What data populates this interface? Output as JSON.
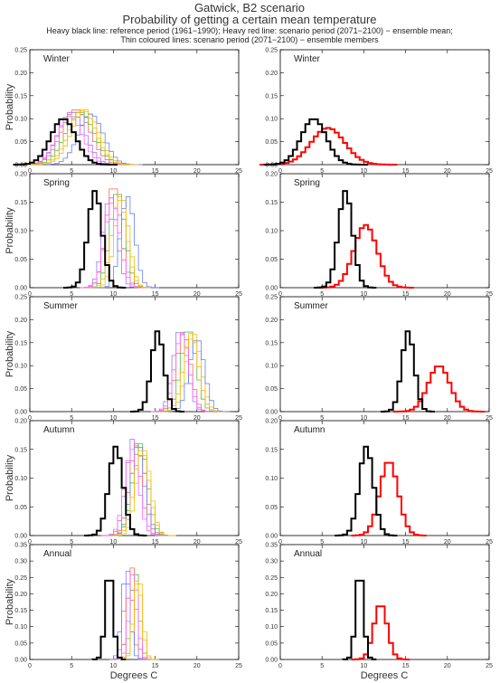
{
  "header": {
    "title1": "Gatwick, B2 scenario",
    "title2": "Probability of getting a certain mean temperature",
    "subtitle1": "Heavy black line: reference period (1961−1990); Heavy red line: scenario period (2071−2100) − ensemble mean;",
    "subtitle2": "Thin coloured lines: scenario period (2071−2100) − ensemble members"
  },
  "axes": {
    "ylabel": "Probability",
    "xlabel": "Degrees C",
    "xticks": [
      "0",
      "5",
      "10",
      "15",
      "20",
      "25"
    ],
    "xlim": [
      0,
      25
    ]
  },
  "colors": {
    "reference": "#000000",
    "ensemble_mean": "#ff0000",
    "members": [
      "#a070ff",
      "#ff6060",
      "#40c040",
      "#f0c000",
      "#6080ff",
      "#ff60ff",
      "#ffb000",
      "#000000"
    ]
  },
  "chart_data": [
    {
      "type": "line",
      "season": "Winter",
      "panel": "members",
      "ylim": [
        0,
        0.25
      ],
      "yticks": [
        "0.00",
        "0.05",
        "0.10",
        "0.15",
        "0.20",
        "0.25"
      ],
      "reference": {
        "mean": 4.0,
        "sd": 1.5,
        "peak": 0.1
      },
      "members": [
        {
          "mean": 5.0,
          "sd": 1.6,
          "peak": 0.115
        },
        {
          "mean": 5.5,
          "sd": 1.7,
          "peak": 0.12
        },
        {
          "mean": 6.0,
          "sd": 1.7,
          "peak": 0.115
        },
        {
          "mean": 6.6,
          "sd": 1.6,
          "peak": 0.12
        },
        {
          "mean": 7.3,
          "sd": 1.5,
          "peak": 0.11
        },
        {
          "mean": 4.8,
          "sd": 1.5,
          "peak": 0.105
        },
        {
          "mean": 6.3,
          "sd": 1.6,
          "peak": 0.12
        }
      ]
    },
    {
      "type": "line",
      "season": "Winter",
      "panel": "mean",
      "ylim": [
        0,
        0.25
      ],
      "yticks": [
        "0.00",
        "0.05",
        "0.10",
        "0.15",
        "0.20",
        "0.25"
      ],
      "reference": {
        "mean": 4.0,
        "sd": 1.5,
        "peak": 0.1
      },
      "ensemble_mean": {
        "mean": 5.7,
        "sd": 2.0,
        "peak": 0.08
      }
    },
    {
      "type": "line",
      "season": "Spring",
      "panel": "members",
      "ylim": [
        0,
        0.2
      ],
      "yticks": [
        "0.00",
        "0.05",
        "0.10",
        "0.15",
        "0.20"
      ],
      "reference": {
        "mean": 7.8,
        "sd": 0.85,
        "peak": 0.17
      },
      "members": [
        {
          "mean": 9.6,
          "sd": 0.85,
          "peak": 0.16
        },
        {
          "mean": 10.0,
          "sd": 0.9,
          "peak": 0.18
        },
        {
          "mean": 10.5,
          "sd": 0.9,
          "peak": 0.17
        },
        {
          "mean": 11.0,
          "sd": 0.85,
          "peak": 0.16
        },
        {
          "mean": 11.7,
          "sd": 0.85,
          "peak": 0.16
        },
        {
          "mean": 9.9,
          "sd": 0.9,
          "peak": 0.15
        },
        {
          "mean": 10.7,
          "sd": 0.9,
          "peak": 0.16
        }
      ]
    },
    {
      "type": "line",
      "season": "Spring",
      "panel": "mean",
      "ylim": [
        0,
        0.2
      ],
      "yticks": [
        "0.00",
        "0.05",
        "0.10",
        "0.15",
        "0.20"
      ],
      "reference": {
        "mean": 7.8,
        "sd": 0.85,
        "peak": 0.17
      },
      "ensemble_mean": {
        "mean": 10.2,
        "sd": 1.4,
        "peak": 0.11
      }
    },
    {
      "type": "line",
      "season": "Summer",
      "panel": "members",
      "ylim": [
        0,
        0.25
      ],
      "yticks": [
        "0.00",
        "0.05",
        "0.10",
        "0.15",
        "0.20",
        "0.25"
      ],
      "reference": {
        "mean": 15.3,
        "sd": 0.75,
        "peak": 0.175
      },
      "members": [
        {
          "mean": 18.0,
          "sd": 0.85,
          "peak": 0.18
        },
        {
          "mean": 18.4,
          "sd": 0.85,
          "peak": 0.17
        },
        {
          "mean": 19.0,
          "sd": 0.9,
          "peak": 0.18
        },
        {
          "mean": 19.6,
          "sd": 0.9,
          "peak": 0.17
        },
        {
          "mean": 20.0,
          "sd": 0.9,
          "peak": 0.16
        },
        {
          "mean": 18.2,
          "sd": 0.85,
          "peak": 0.17
        },
        {
          "mean": 19.3,
          "sd": 0.9,
          "peak": 0.17
        }
      ]
    },
    {
      "type": "line",
      "season": "Summer",
      "panel": "mean",
      "ylim": [
        0,
        0.25
      ],
      "yticks": [
        "0.00",
        "0.05",
        "0.10",
        "0.15",
        "0.20",
        "0.25"
      ],
      "reference": {
        "mean": 15.3,
        "sd": 0.75,
        "peak": 0.175
      },
      "ensemble_mean": {
        "mean": 19.0,
        "sd": 1.3,
        "peak": 0.1
      }
    },
    {
      "type": "line",
      "season": "Autumn",
      "panel": "members",
      "ylim": [
        0,
        0.2
      ],
      "yticks": [
        "0.00",
        "0.05",
        "0.10",
        "0.15",
        "0.20"
      ],
      "reference": {
        "mean": 10.3,
        "sd": 0.85,
        "peak": 0.155
      },
      "members": [
        {
          "mean": 12.4,
          "sd": 0.85,
          "peak": 0.17
        },
        {
          "mean": 12.8,
          "sd": 0.85,
          "peak": 0.16
        },
        {
          "mean": 13.2,
          "sd": 0.9,
          "peak": 0.16
        },
        {
          "mean": 13.6,
          "sd": 0.85,
          "peak": 0.15
        },
        {
          "mean": 13.0,
          "sd": 0.85,
          "peak": 0.16
        },
        {
          "mean": 12.2,
          "sd": 0.85,
          "peak": 0.15
        },
        {
          "mean": 13.4,
          "sd": 0.9,
          "peak": 0.15
        }
      ]
    },
    {
      "type": "line",
      "season": "Autumn",
      "panel": "mean",
      "ylim": [
        0,
        0.2
      ],
      "yticks": [
        "0.00",
        "0.05",
        "0.10",
        "0.15",
        "0.20"
      ],
      "reference": {
        "mean": 10.3,
        "sd": 0.85,
        "peak": 0.155
      },
      "ensemble_mean": {
        "mean": 13.0,
        "sd": 1.1,
        "peak": 0.13
      }
    },
    {
      "type": "line",
      "season": "Annual",
      "panel": "members",
      "ylim": [
        0,
        0.35
      ],
      "yticks": [
        "0.00",
        "0.05",
        "0.10",
        "0.15",
        "0.20",
        "0.25",
        "0.30",
        "0.35"
      ],
      "reference": {
        "mean": 9.5,
        "sd": 0.45,
        "peak": 0.28
      },
      "members": [
        {
          "mean": 11.8,
          "sd": 0.5,
          "peak": 0.27
        },
        {
          "mean": 12.2,
          "sd": 0.5,
          "peak": 0.28
        },
        {
          "mean": 12.6,
          "sd": 0.5,
          "peak": 0.27
        },
        {
          "mean": 13.0,
          "sd": 0.5,
          "peak": 0.26
        },
        {
          "mean": 11.5,
          "sd": 0.5,
          "peak": 0.26
        },
        {
          "mean": 12.4,
          "sd": 0.5,
          "peak": 0.27
        },
        {
          "mean": 12.9,
          "sd": 0.5,
          "peak": 0.25
        }
      ]
    },
    {
      "type": "line",
      "season": "Annual",
      "panel": "mean",
      "ylim": [
        0,
        0.35
      ],
      "yticks": [
        "0.00",
        "0.05",
        "0.10",
        "0.15",
        "0.20",
        "0.25",
        "0.30",
        "0.35"
      ],
      "reference": {
        "mean": 9.5,
        "sd": 0.45,
        "peak": 0.28
      },
      "ensemble_mean": {
        "mean": 12.0,
        "sd": 0.8,
        "peak": 0.17
      }
    }
  ]
}
